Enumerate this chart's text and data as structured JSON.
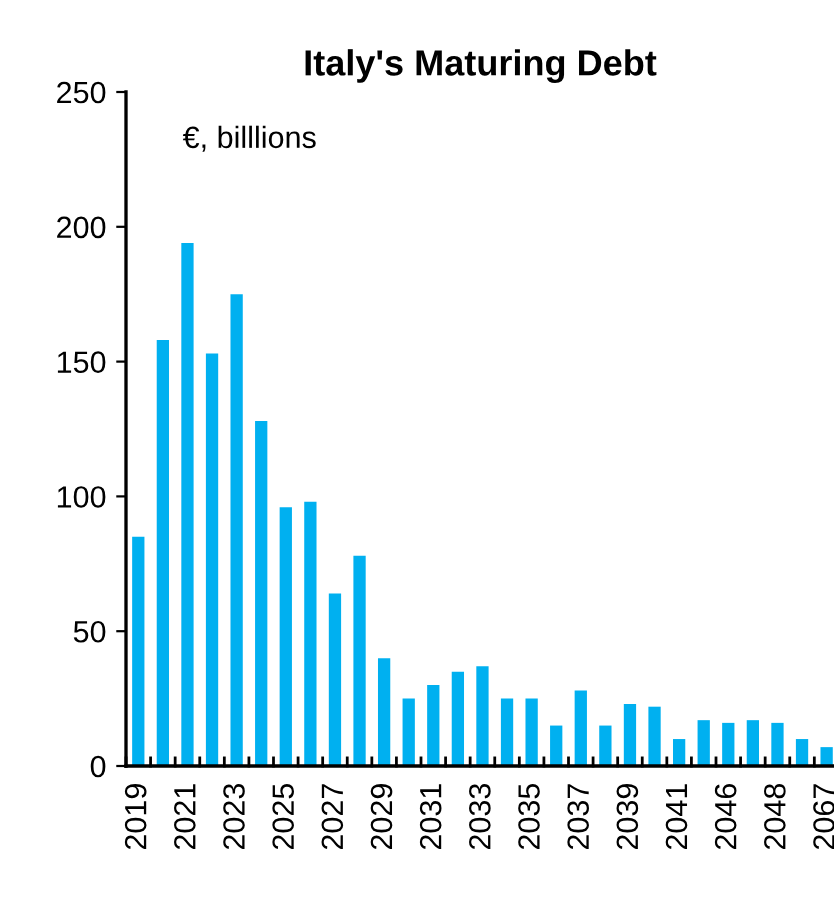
{
  "chart_data": {
    "type": "bar",
    "title": "Italy's Maturing Debt",
    "categories": [
      "2019",
      null,
      "2021",
      null,
      "2023",
      null,
      "2025",
      null,
      "2027",
      null,
      "2029",
      null,
      "2031",
      null,
      "2033",
      null,
      "2035",
      null,
      "2037",
      null,
      "2039",
      null,
      "2041",
      null,
      "2046",
      null,
      "2048",
      null,
      "2067"
    ],
    "values": [
      85,
      158,
      194,
      153,
      175,
      128,
      96,
      98,
      64,
      78,
      40,
      25,
      30,
      35,
      37,
      25,
      25,
      15,
      28,
      15,
      23,
      22,
      10,
      17,
      16,
      17,
      16,
      10,
      7
    ],
    "color": "#00b0f0",
    "ylim": [
      0,
      250
    ],
    "yticks": [
      0,
      50,
      100,
      150,
      200,
      250
    ],
    "grid": false,
    "annotations": [
      "€, billlions"
    ]
  }
}
